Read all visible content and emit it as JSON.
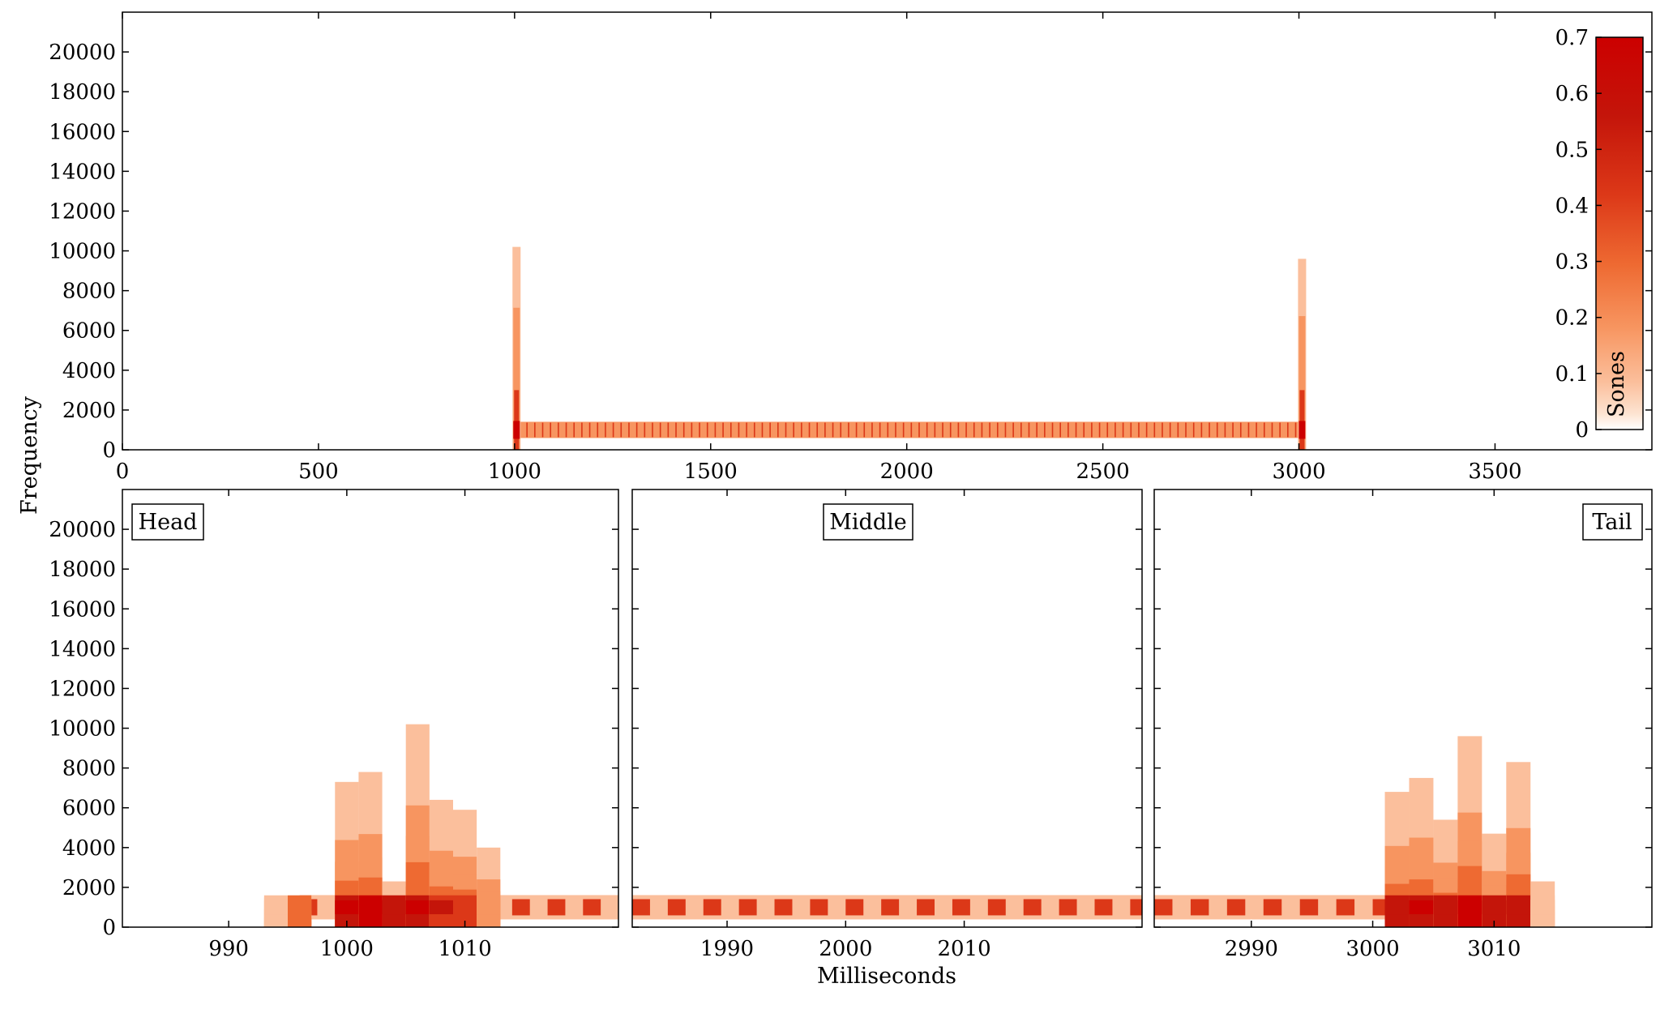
{
  "colors": {
    "colormap": [
      "#ffffff",
      "#fde4d2",
      "#fbbf9c",
      "#f79560",
      "#ee6a32",
      "#dc3818",
      "#c4150a",
      "#cc0000"
    ],
    "frame": "#000000"
  },
  "y_axis_label": "Frequency",
  "x_axis_label": "Milliseconds",
  "colorbar": {
    "label": "Sones",
    "ticks": [
      "0",
      "0.1",
      "0.2",
      "0.3",
      "0.4",
      "0.5",
      "0.6",
      "0.7"
    ],
    "range": [
      0,
      0.7
    ]
  },
  "chart_data": [
    {
      "type": "heatmap",
      "panel": "overview",
      "title": "",
      "xlabel": "",
      "ylabel": "Frequency",
      "xlim": [
        0,
        3900
      ],
      "ylim": [
        0,
        22000
      ],
      "xticks": [
        "0",
        "500",
        "1000",
        "1500",
        "2000",
        "2500",
        "3000",
        "3500"
      ],
      "yticks": [
        "0",
        "2000",
        "4000",
        "6000",
        "8000",
        "10000",
        "12000",
        "14000",
        "16000",
        "18000",
        "20000"
      ],
      "tone": {
        "start_ms": 1000,
        "end_ms": 3010,
        "freq_hz": 1000,
        "level_sones": 0.3
      },
      "onset_burst": {
        "time_ms": 1005,
        "max_freq_hz": 10200,
        "peak_sones": 0.7
      },
      "offset_burst": {
        "time_ms": 3008,
        "max_freq_hz": 9600,
        "peak_sones": 0.7
      }
    },
    {
      "type": "heatmap",
      "panel": "head",
      "label": "Head",
      "xlim": [
        981,
        1023
      ],
      "ylim": [
        0,
        22000
      ],
      "xticks": [
        "990",
        "1000",
        "1010"
      ],
      "yticks": [
        "0",
        "2000",
        "4000",
        "6000",
        "8000",
        "10000",
        "12000",
        "14000",
        "16000",
        "18000",
        "20000"
      ],
      "columns_ms": [
        994,
        996,
        1000,
        1002,
        1004,
        1006,
        1008,
        1010,
        1012
      ],
      "column_max_freq_hz": [
        1500,
        1400,
        7300,
        7800,
        2300,
        10200,
        6400,
        5900,
        4000
      ],
      "column_peak_sones": [
        0.05,
        0.25,
        0.6,
        0.7,
        0.5,
        0.65,
        0.45,
        0.35,
        0.1
      ]
    },
    {
      "type": "heatmap",
      "panel": "middle",
      "label": "Middle",
      "xlim": [
        1982,
        2025
      ],
      "ylim": [
        0,
        22000
      ],
      "xticks": [
        "1990",
        "2000",
        "2010"
      ],
      "tone_freq_hz": 1000,
      "tone_level_sones": 0.3
    },
    {
      "type": "heatmap",
      "panel": "tail",
      "label": "Tail",
      "xlim": [
        2982,
        3023
      ],
      "ylim": [
        0,
        22000
      ],
      "xticks": [
        "2990",
        "3000",
        "3010"
      ],
      "columns_ms": [
        3002,
        3004,
        3006,
        3008,
        3010,
        3012,
        3014
      ],
      "column_max_freq_hz": [
        6800,
        7500,
        5400,
        9600,
        4700,
        8300,
        2300
      ],
      "column_peak_sones": [
        0.5,
        0.6,
        0.5,
        0.7,
        0.55,
        0.5,
        0.05
      ]
    }
  ]
}
